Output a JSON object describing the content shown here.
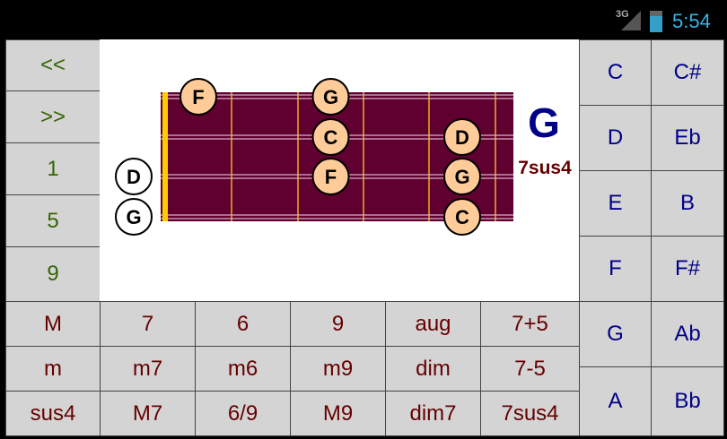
{
  "status_bar": {
    "network": "3G",
    "time": "5:54"
  },
  "nav_buttons": [
    "<<",
    ">>",
    "1",
    "5",
    "9"
  ],
  "chord": {
    "root": "G",
    "type": "7sus4"
  },
  "fretboard": {
    "open_notes": [
      {
        "string": 3,
        "note": "D"
      },
      {
        "string": 4,
        "note": "G"
      }
    ],
    "notes": [
      {
        "string": 1,
        "fret": 1,
        "note": "F"
      },
      {
        "string": 1,
        "fret": 3,
        "note": "G"
      },
      {
        "string": 2,
        "fret": 3,
        "note": "C"
      },
      {
        "string": 3,
        "fret": 3,
        "note": "F"
      },
      {
        "string": 2,
        "fret": 5,
        "note": "D"
      },
      {
        "string": 3,
        "fret": 5,
        "note": "G"
      },
      {
        "string": 4,
        "fret": 5,
        "note": "C"
      }
    ],
    "colors": {
      "board": "#600030",
      "fret": "#d08020",
      "nut": "#ffcc00",
      "note": "#ffcc99"
    }
  },
  "chord_types": [
    [
      "M",
      "7",
      "6",
      "9",
      "aug",
      "7+5"
    ],
    [
      "m",
      "m7",
      "m6",
      "m9",
      "dim",
      "7-5"
    ],
    [
      "sus4",
      "M7",
      "6/9",
      "M9",
      "dim7",
      "7sus4"
    ]
  ],
  "roots": [
    [
      "C",
      "C#"
    ],
    [
      "D",
      "Eb"
    ],
    [
      "E",
      "B"
    ],
    [
      "F",
      "F#"
    ],
    [
      "G",
      "Ab"
    ],
    [
      "A",
      "Bb"
    ]
  ]
}
